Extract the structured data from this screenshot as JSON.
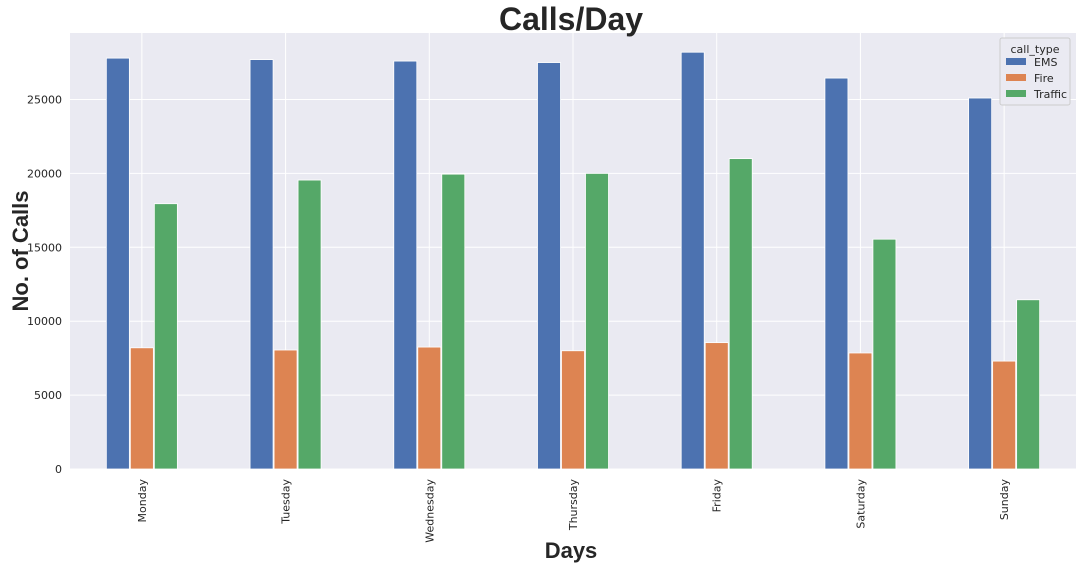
{
  "chart_data": {
    "type": "bar",
    "title": "Calls/Day",
    "xlabel": "Days",
    "ylabel": "No. of Calls",
    "categories": [
      "Monday",
      "Tuesday",
      "Wednesday",
      "Thursday",
      "Friday",
      "Saturday",
      "Sunday"
    ],
    "series": [
      {
        "name": "EMS",
        "color": "#4c72b0",
        "values": [
          27800,
          27700,
          27600,
          27500,
          28200,
          26450,
          25100
        ]
      },
      {
        "name": "Fire",
        "color": "#dd8452",
        "values": [
          8200,
          8050,
          8250,
          8000,
          8550,
          7850,
          7300
        ]
      },
      {
        "name": "Traffic",
        "color": "#55a868",
        "values": [
          17950,
          19550,
          19950,
          20000,
          21000,
          15550,
          11450
        ]
      }
    ],
    "ylim": [
      0,
      29500
    ],
    "yticks": [
      0,
      5000,
      10000,
      15000,
      20000,
      25000
    ],
    "grid": true,
    "legend": {
      "title": "call_type",
      "placement": "top-right"
    },
    "background": "#eaeaf2",
    "grid_color": "#ffffff"
  }
}
